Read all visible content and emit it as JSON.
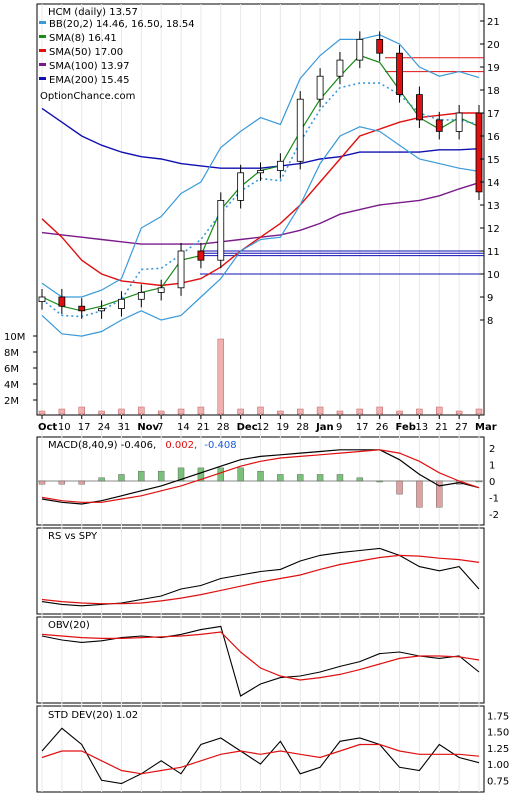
{
  "main": {
    "title": "HCM (daily) 13.57",
    "watermark": "OptionChance.com",
    "legend": [
      {
        "label": "BB(20,2) 14.46, 16.50, 18.54",
        "color": "#3a9ad9"
      },
      {
        "label": "SMA(8) 16.41",
        "color": "#1a8a1a"
      },
      {
        "label": "SMA(50) 17.00",
        "color": "#e01010"
      },
      {
        "label": "SMA(100) 13.97",
        "color": "#7a1a8a"
      },
      {
        "label": "EMA(200) 15.45",
        "color": "#1010b0"
      }
    ],
    "price_ticks": [
      "21",
      "20",
      "19",
      "18",
      "17",
      "16",
      "15",
      "14",
      "13",
      "12",
      "11",
      "10",
      "9",
      "8"
    ],
    "volume_ticks": [
      "10M",
      "8M",
      "6M",
      "4M",
      "2M"
    ],
    "x_ticks": [
      "Oct",
      "10",
      "17",
      "24",
      "31",
      "Nov",
      "7",
      "14",
      "21",
      "28",
      "Dec",
      "12",
      "19",
      "28",
      "Jan",
      "9",
      "17",
      "26",
      "Feb",
      "13",
      "21",
      "27",
      "Mar"
    ]
  },
  "macd": {
    "label": "MACD(8,40,9) -0.406,",
    "value2": "0.002,",
    "value3": "-0.408",
    "ticks": [
      "2",
      "1",
      "0",
      "-1",
      "-2"
    ]
  },
  "rs": {
    "label": "RS vs SPY"
  },
  "obv": {
    "label": "OBV(20)"
  },
  "std": {
    "label": "STD DEV(20) 1.02",
    "ticks": [
      "1.75",
      "1.50",
      "1.25",
      "1.00",
      "0.75"
    ]
  },
  "colors": {
    "up": "#ffffff",
    "down": "#e01010",
    "bb": "#3a9ad9",
    "sma8": "#1a8a1a",
    "sma50": "#e01010",
    "sma100": "#7a1a8a",
    "ema200": "#1010b0",
    "volume": "#f0b0b0",
    "hist_pos": "#7ac07a",
    "hist_neg": "#e0a0a0"
  },
  "chart_data": [
    {
      "type": "candlestick",
      "symbol": "HCM",
      "ylim": [
        7,
        21.5
      ],
      "x": [
        "Oct",
        "10",
        "17",
        "24",
        "31",
        "Nov",
        "7",
        "14",
        "21",
        "28",
        "Dec",
        "12",
        "19",
        "28",
        "Jan",
        "9",
        "17",
        "26",
        "Feb",
        "13",
        "21",
        "27",
        "Mar"
      ],
      "close": [
        9.0,
        8.6,
        8.4,
        8.5,
        8.9,
        9.2,
        9.4,
        11.0,
        10.6,
        13.2,
        14.4,
        14.5,
        14.9,
        17.6,
        18.6,
        19.3,
        20.2,
        19.6,
        17.8,
        16.7,
        16.2,
        17.0,
        13.57
      ],
      "series": [
        {
          "name": "BB upper",
          "values": [
            9.6,
            9.0,
            9.0,
            9.3,
            9.8,
            12.0,
            12.5,
            13.5,
            14.0,
            15.5,
            16.2,
            16.8,
            16.5,
            18.5,
            19.5,
            20.2,
            20.2,
            20.4,
            20.0,
            19.0,
            18.6,
            18.8,
            18.54
          ]
        },
        {
          "name": "BB lower",
          "values": [
            8.2,
            7.4,
            7.3,
            7.5,
            8.0,
            8.4,
            8.0,
            8.2,
            9.0,
            9.8,
            11.0,
            11.5,
            11.6,
            13.0,
            14.8,
            16.0,
            16.4,
            16.2,
            15.6,
            15.0,
            14.8,
            14.6,
            14.46
          ]
        },
        {
          "name": "SMA(8)",
          "values": [
            9.0,
            8.6,
            8.4,
            8.6,
            8.9,
            9.2,
            9.4,
            10.6,
            10.8,
            12.8,
            13.8,
            14.5,
            14.7,
            16.2,
            17.6,
            18.6,
            19.5,
            19.2,
            18.0,
            16.8,
            16.3,
            16.8,
            16.41
          ]
        },
        {
          "name": "SMA(50)",
          "values": [
            12.4,
            11.6,
            10.6,
            10.0,
            9.7,
            9.6,
            9.5,
            9.6,
            9.8,
            10.3,
            11.0,
            11.6,
            12.2,
            13.0,
            14.0,
            15.0,
            16.0,
            16.3,
            16.6,
            16.8,
            16.9,
            17.0,
            17.0
          ]
        },
        {
          "name": "SMA(100)",
          "values": [
            11.8,
            11.7,
            11.6,
            11.5,
            11.4,
            11.3,
            11.3,
            11.3,
            11.3,
            11.4,
            11.5,
            11.6,
            11.7,
            11.9,
            12.2,
            12.6,
            12.8,
            13.0,
            13.1,
            13.2,
            13.4,
            13.7,
            13.97
          ]
        },
        {
          "name": "EMA(200)",
          "values": [
            17.2,
            16.6,
            16.0,
            15.6,
            15.3,
            15.1,
            15.0,
            14.8,
            14.7,
            14.6,
            14.6,
            14.6,
            14.7,
            14.8,
            15.0,
            15.1,
            15.3,
            15.3,
            15.3,
            15.3,
            15.4,
            15.4,
            15.45
          ]
        }
      ]
    },
    {
      "type": "line",
      "name": "MACD(8,40,9)",
      "ylim": [
        -2.5,
        2.5
      ],
      "x": [
        "Oct",
        "10",
        "17",
        "24",
        "31",
        "Nov",
        "7",
        "14",
        "21",
        "28",
        "Dec",
        "12",
        "19",
        "28",
        "Jan",
        "9",
        "17",
        "26",
        "Feb",
        "13",
        "21",
        "27",
        "Mar"
      ],
      "series": [
        {
          "name": "MACD",
          "values": [
            -1.1,
            -1.3,
            -1.4,
            -1.2,
            -0.9,
            -0.6,
            -0.3,
            0.1,
            0.5,
            0.9,
            1.3,
            1.5,
            1.6,
            1.7,
            1.8,
            1.9,
            1.9,
            1.9,
            1.3,
            0.4,
            -0.3,
            -0.1,
            -0.406
          ]
        },
        {
          "name": "Signal",
          "values": [
            -1.0,
            -1.2,
            -1.3,
            -1.3,
            -1.1,
            -0.9,
            -0.6,
            -0.3,
            0.1,
            0.5,
            0.9,
            1.2,
            1.4,
            1.5,
            1.6,
            1.7,
            1.8,
            1.9,
            1.7,
            1.2,
            0.5,
            0.0,
            -0.408
          ]
        }
      ]
    },
    {
      "type": "line",
      "name": "RS vs SPY",
      "x": [
        "Oct",
        "10",
        "17",
        "24",
        "31",
        "Nov",
        "7",
        "14",
        "21",
        "28",
        "Dec",
        "12",
        "19",
        "28",
        "Jan",
        "9",
        "17",
        "26",
        "Feb",
        "13",
        "21",
        "27",
        "Mar"
      ],
      "series": [
        {
          "name": "RS",
          "values": [
            0.12,
            0.08,
            0.06,
            0.08,
            0.1,
            0.15,
            0.2,
            0.3,
            0.35,
            0.45,
            0.5,
            0.55,
            0.58,
            0.7,
            0.78,
            0.82,
            0.85,
            0.88,
            0.78,
            0.62,
            0.56,
            0.62,
            0.3
          ]
        },
        {
          "name": "RS MA",
          "values": [
            0.15,
            0.12,
            0.1,
            0.09,
            0.09,
            0.1,
            0.13,
            0.17,
            0.22,
            0.28,
            0.34,
            0.4,
            0.45,
            0.5,
            0.58,
            0.65,
            0.7,
            0.75,
            0.78,
            0.77,
            0.74,
            0.72,
            0.68
          ]
        }
      ]
    },
    {
      "type": "line",
      "name": "OBV(20)",
      "x": [
        "Oct",
        "10",
        "17",
        "24",
        "31",
        "Nov",
        "7",
        "14",
        "21",
        "28",
        "Dec",
        "12",
        "19",
        "28",
        "Jan",
        "9",
        "17",
        "26",
        "Feb",
        "13",
        "21",
        "27",
        "Mar"
      ],
      "series": [
        {
          "name": "OBV",
          "values": [
            0.8,
            0.75,
            0.72,
            0.74,
            0.78,
            0.8,
            0.78,
            0.82,
            0.88,
            0.92,
            0.05,
            0.2,
            0.28,
            0.3,
            0.35,
            0.42,
            0.48,
            0.58,
            0.6,
            0.55,
            0.52,
            0.55,
            0.35
          ]
        },
        {
          "name": "OBV MA",
          "values": [
            0.82,
            0.8,
            0.78,
            0.77,
            0.77,
            0.78,
            0.79,
            0.8,
            0.82,
            0.85,
            0.6,
            0.4,
            0.3,
            0.25,
            0.28,
            0.32,
            0.38,
            0.45,
            0.52,
            0.55,
            0.55,
            0.54,
            0.5
          ]
        }
      ]
    },
    {
      "type": "line",
      "name": "STD DEV(20)",
      "ylim": [
        0.6,
        1.8
      ],
      "x": [
        "Oct",
        "10",
        "17",
        "24",
        "31",
        "Nov",
        "7",
        "14",
        "21",
        "28",
        "Dec",
        "12",
        "19",
        "28",
        "Jan",
        "9",
        "17",
        "26",
        "Feb",
        "13",
        "21",
        "27",
        "Mar"
      ],
      "series": [
        {
          "name": "STD DEV",
          "values": [
            1.2,
            1.55,
            1.3,
            0.75,
            0.7,
            0.85,
            1.05,
            0.85,
            1.3,
            1.4,
            1.2,
            1.0,
            1.35,
            0.85,
            0.95,
            1.35,
            1.4,
            1.3,
            0.95,
            0.9,
            1.3,
            1.1,
            1.02
          ]
        },
        {
          "name": "STD MA",
          "values": [
            1.1,
            1.2,
            1.2,
            1.05,
            0.9,
            0.85,
            0.9,
            0.95,
            1.05,
            1.15,
            1.2,
            1.15,
            1.2,
            1.15,
            1.1,
            1.2,
            1.3,
            1.3,
            1.2,
            1.15,
            1.15,
            1.15,
            1.12
          ]
        }
      ]
    }
  ]
}
